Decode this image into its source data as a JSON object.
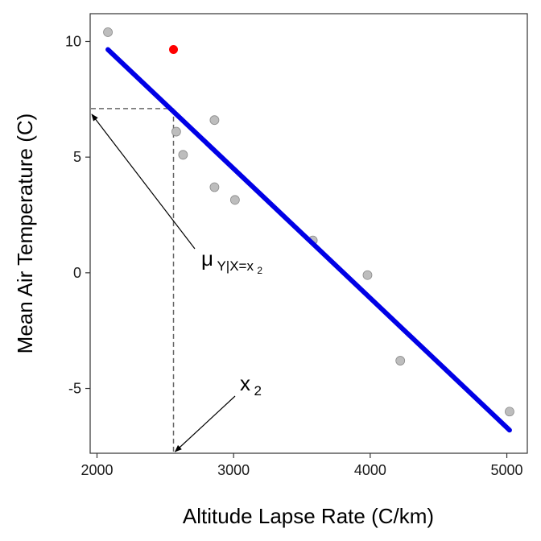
{
  "chart_data": {
    "type": "scatter",
    "title": "",
    "xlabel": "Altitude Lapse Rate (C/km)",
    "ylabel": "Mean Air Temperature (C)",
    "xlim": [
      1950,
      5150
    ],
    "ylim": [
      -7.8,
      11.2
    ],
    "xticks": [
      2000,
      3000,
      4000,
      5000
    ],
    "yticks": [
      -5,
      0,
      5,
      10
    ],
    "xtick_labels": [
      "2000",
      "3000",
      "4000",
      "5000"
    ],
    "ytick_labels": [
      "-5",
      "0",
      "5",
      "10"
    ],
    "grid": false,
    "legend": "none",
    "points": [
      {
        "x": 2080,
        "y": 10.4
      },
      {
        "x": 2580,
        "y": 6.1
      },
      {
        "x": 2630,
        "y": 5.1
      },
      {
        "x": 2860,
        "y": 6.6
      },
      {
        "x": 2860,
        "y": 3.7
      },
      {
        "x": 3010,
        "y": 3.15
      },
      {
        "x": 3580,
        "y": 1.4
      },
      {
        "x": 3980,
        "y": -0.1
      },
      {
        "x": 4220,
        "y": -3.8
      },
      {
        "x": 5020,
        "y": -6.0
      }
    ],
    "highlight_point": {
      "x": 2560,
      "y": 9.65
    },
    "regression_line": {
      "x": [
        2080,
        5020
      ],
      "y": [
        9.65,
        -6.8
      ]
    },
    "x2_value": 2560,
    "mu_value": 7.1,
    "colors": {
      "points": "#bdbdbd",
      "points_stroke": "#8c8c8c",
      "highlight": "#ff0000",
      "line": "#0000e6",
      "guide": "#666666",
      "arrow": "#000000"
    },
    "annotations": {
      "mu": {
        "base": "μ",
        "sub_main": "Y|X=x",
        "sub_sub": "2"
      },
      "x2": {
        "base": "x",
        "sub": "2"
      }
    }
  }
}
